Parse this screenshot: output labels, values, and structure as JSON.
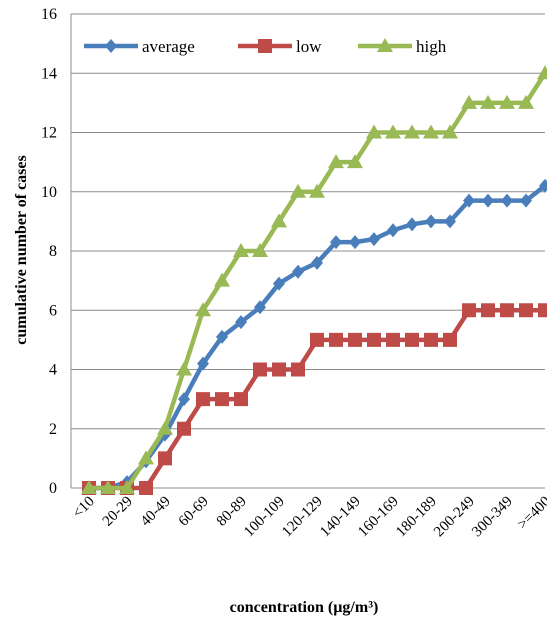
{
  "chart_data": {
    "type": "line",
    "xlabel": "concentration (µg/m³)",
    "ylabel": "cumulative number of cases",
    "ylim": [
      0,
      16
    ],
    "yticks": [
      0,
      2,
      4,
      6,
      8,
      10,
      12,
      14,
      16
    ],
    "grid": "horizontal",
    "legend_position": "top",
    "x_labels_shown": [
      "<10",
      "20-29",
      "40-49",
      "60-69",
      "80-89",
      "100-109",
      "120-129",
      "140-149",
      "160-169",
      "180-189",
      "200-249",
      "300-349",
      ">=400"
    ],
    "points_count": 25,
    "series": [
      {
        "name": "average",
        "color": "#4a7ebb",
        "marker": "diamond",
        "values": [
          0,
          0,
          0.2,
          0.9,
          1.8,
          3.0,
          4.2,
          5.1,
          5.6,
          6.1,
          6.9,
          7.3,
          7.6,
          8.3,
          8.3,
          8.4,
          8.7,
          8.9,
          9.0,
          9.0,
          9.7,
          9.7,
          9.7,
          9.7,
          10.2
        ]
      },
      {
        "name": "low",
        "color": "#be4b48",
        "marker": "square",
        "values": [
          0,
          0,
          0,
          0,
          1,
          2,
          3,
          3,
          3,
          4,
          4,
          4,
          5,
          5,
          5,
          5,
          5,
          5,
          5,
          5,
          6,
          6,
          6,
          6,
          6
        ]
      },
      {
        "name": "high",
        "color": "#98b954",
        "marker": "triangle",
        "values": [
          0,
          0,
          0,
          1,
          2,
          4,
          6,
          7,
          8,
          8,
          9,
          10,
          10,
          11,
          11,
          12,
          12,
          12,
          12,
          12,
          13,
          13,
          13,
          13,
          14
        ]
      }
    ]
  }
}
